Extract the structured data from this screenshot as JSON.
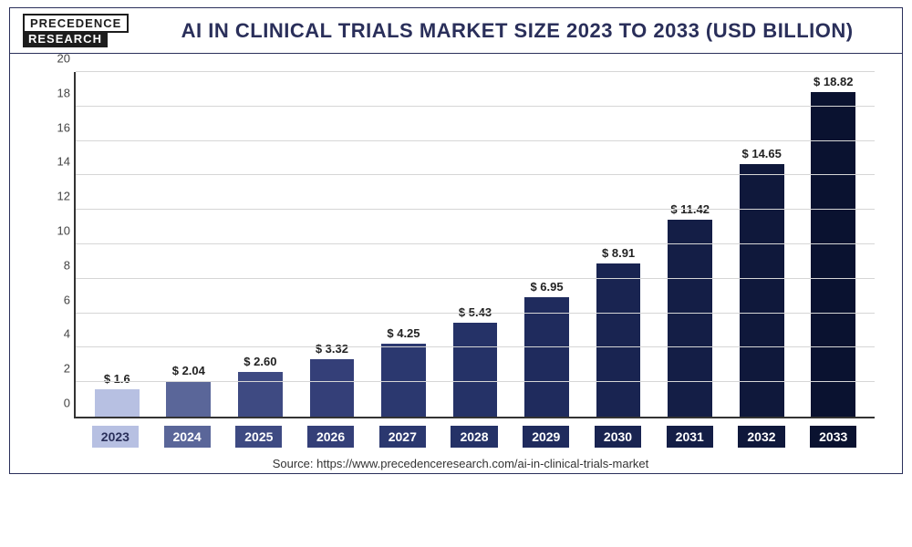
{
  "logo": {
    "top": "PRECEDENCE",
    "bottom": "RESEARCH"
  },
  "title": "AI IN CLINICAL TRIALS MARKET SIZE 2023 TO 2033 (USD BILLION)",
  "source": "Source: https://www.precedenceresearch.com/ai-in-clinical-trials-market",
  "chart": {
    "type": "bar",
    "background_color": "#ffffff",
    "grid_color": "#d6d6d6",
    "axis_color": "#333333",
    "ylim": [
      0,
      20
    ],
    "ytick_step": 2,
    "ytick_labels": [
      "0",
      "2",
      "4",
      "6",
      "8",
      "10",
      "12",
      "14",
      "16",
      "18",
      "20"
    ],
    "label_fontsize": 13,
    "title_fontsize": 22,
    "title_color": "#2a2f5a",
    "bar_width": 0.62,
    "value_prefix": "$ ",
    "series": [
      {
        "year": "2023",
        "value": 1.6,
        "label": "$ 1.6",
        "bar_color": "#b7c0e2",
        "tick_bg": "#b7c0e2",
        "tick_text": "#2a2f5a"
      },
      {
        "year": "2024",
        "value": 2.04,
        "label": "$ 2.04",
        "bar_color": "#5a6699",
        "tick_bg": "#5a6699",
        "tick_text": "#ffffff"
      },
      {
        "year": "2025",
        "value": 2.6,
        "label": "$ 2.60",
        "bar_color": "#3e4a82",
        "tick_bg": "#3e4a82",
        "tick_text": "#ffffff"
      },
      {
        "year": "2026",
        "value": 3.32,
        "label": "$ 3.32",
        "bar_color": "#343f78",
        "tick_bg": "#343f78",
        "tick_text": "#ffffff"
      },
      {
        "year": "2027",
        "value": 4.25,
        "label": "$ 4.25",
        "bar_color": "#2b386f",
        "tick_bg": "#2b386f",
        "tick_text": "#ffffff"
      },
      {
        "year": "2028",
        "value": 5.43,
        "label": "$ 5.43",
        "bar_color": "#253267",
        "tick_bg": "#253267",
        "tick_text": "#ffffff"
      },
      {
        "year": "2029",
        "value": 6.95,
        "label": "$ 6.95",
        "bar_color": "#1f2b5d",
        "tick_bg": "#1f2b5d",
        "tick_text": "#ffffff"
      },
      {
        "year": "2030",
        "value": 8.91,
        "label": "$ 8.91",
        "bar_color": "#192451",
        "tick_bg": "#192451",
        "tick_text": "#ffffff"
      },
      {
        "year": "2031",
        "value": 11.42,
        "label": "$ 11.42",
        "bar_color": "#141e46",
        "tick_bg": "#141e46",
        "tick_text": "#ffffff"
      },
      {
        "year": "2032",
        "value": 14.65,
        "label": "$ 14.65",
        "bar_color": "#0f183b",
        "tick_bg": "#0f183b",
        "tick_text": "#ffffff"
      },
      {
        "year": "2033",
        "value": 18.82,
        "label": "$ 18.82",
        "bar_color": "#0a1230",
        "tick_bg": "#0a1230",
        "tick_text": "#ffffff"
      }
    ]
  }
}
